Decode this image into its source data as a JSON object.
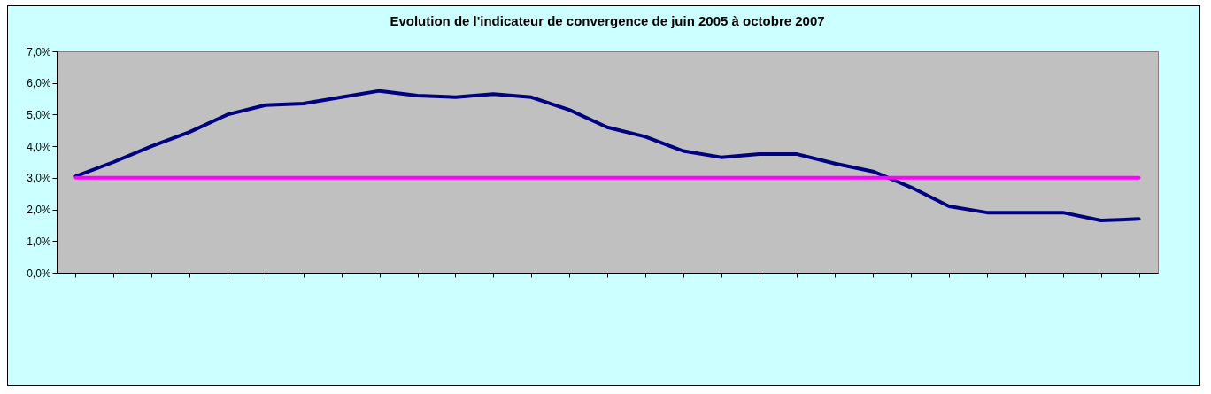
{
  "chart_data": {
    "type": "line",
    "title": "Evolution de l'indicateur de convergence de juin 2005 à octobre 2007",
    "categories": [
      null,
      null,
      null,
      null,
      null,
      null,
      null,
      null,
      null,
      null,
      null,
      null,
      null,
      null,
      null,
      null,
      null,
      null,
      null,
      null,
      null,
      null,
      null,
      null,
      null,
      null,
      null,
      null,
      null
    ],
    "series": [
      {
        "color": "#000080",
        "values": [
          3.05,
          3.5,
          4.0,
          4.45,
          5.0,
          5.3,
          5.35,
          5.55,
          5.75,
          5.6,
          5.55,
          5.65,
          5.55,
          5.15,
          4.6,
          4.3,
          3.85,
          3.65,
          3.75,
          3.75,
          3.45,
          3.2,
          2.7,
          2.1,
          1.9,
          1.9,
          1.9,
          1.65,
          1.7
        ]
      },
      {
        "color": "#ff00ff",
        "values": [
          3,
          3,
          3,
          3,
          3,
          3,
          3,
          3,
          3,
          3,
          3,
          3,
          3,
          3,
          3,
          3,
          3,
          3,
          3,
          3,
          3,
          3,
          3,
          3,
          3,
          3,
          3,
          3,
          3
        ]
      }
    ],
    "ylim": [
      0,
      7
    ],
    "yticks": [
      {
        "value": 0,
        "label": "0,0%"
      },
      {
        "value": 1,
        "label": "1,0%"
      },
      {
        "value": 2,
        "label": "2,0%"
      },
      {
        "value": 3,
        "label": "3,0%"
      },
      {
        "value": 4,
        "label": "4,0%"
      },
      {
        "value": 5,
        "label": "5,0%"
      },
      {
        "value": 6,
        "label": "6,0%"
      },
      {
        "value": 7,
        "label": "7,0%"
      }
    ],
    "tick_labels": "y",
    "grid": false,
    "legend": false,
    "marker": "none",
    "line_style": "solid"
  }
}
